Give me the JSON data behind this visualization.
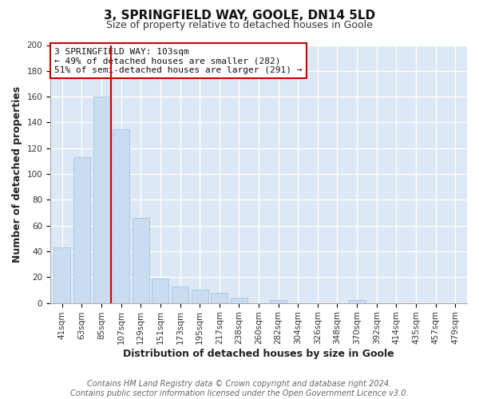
{
  "title": "3, SPRINGFIELD WAY, GOOLE, DN14 5LD",
  "subtitle": "Size of property relative to detached houses in Goole",
  "xlabel": "Distribution of detached houses by size in Goole",
  "ylabel": "Number of detached properties",
  "bar_labels": [
    "41sqm",
    "63sqm",
    "85sqm",
    "107sqm",
    "129sqm",
    "151sqm",
    "173sqm",
    "195sqm",
    "217sqm",
    "238sqm",
    "260sqm",
    "282sqm",
    "304sqm",
    "326sqm",
    "348sqm",
    "370sqm",
    "392sqm",
    "414sqm",
    "435sqm",
    "457sqm",
    "479sqm"
  ],
  "bar_values": [
    43,
    113,
    160,
    135,
    66,
    19,
    13,
    10,
    8,
    4,
    0,
    2,
    0,
    0,
    0,
    2,
    0,
    0,
    0,
    0,
    0
  ],
  "bar_color": "#c9dcf0",
  "bar_edge_color": "#a8c4e0",
  "vline_color": "#cc0000",
  "ylim": [
    0,
    200
  ],
  "yticks": [
    0,
    20,
    40,
    60,
    80,
    100,
    120,
    140,
    160,
    180,
    200
  ],
  "annotation_box_text": [
    "3 SPRINGFIELD WAY: 103sqm",
    "← 49% of detached houses are smaller (282)",
    "51% of semi-detached houses are larger (291) →"
  ],
  "annotation_box_color": "#ffffff",
  "annotation_box_edge_color": "#cc0000",
  "footer_line1": "Contains HM Land Registry data © Crown copyright and database right 2024.",
  "footer_line2": "Contains public sector information licensed under the Open Government Licence v3.0.",
  "plot_bg_color": "#dce8f5",
  "fig_bg_color": "#ffffff",
  "grid_color": "#ffffff",
  "title_fontsize": 11,
  "subtitle_fontsize": 9,
  "axis_label_fontsize": 9,
  "tick_fontsize": 7.5,
  "annotation_fontsize": 8,
  "footer_fontsize": 7
}
